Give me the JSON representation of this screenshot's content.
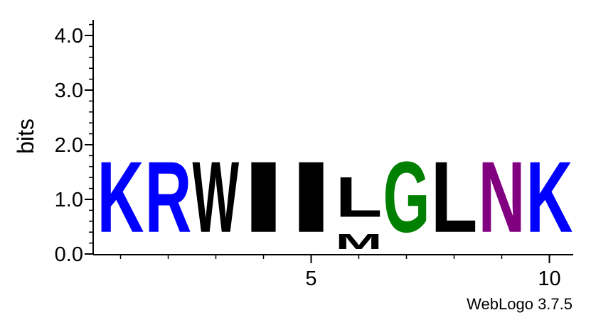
{
  "chart_data": {
    "type": "sequence-logo",
    "ylabel": "bits",
    "ylim": [
      0,
      4.32
    ],
    "y_ticks": [
      {
        "value": 0,
        "label": "0.0"
      },
      {
        "value": 1,
        "label": "1.0"
      },
      {
        "value": 2,
        "label": "2.0"
      },
      {
        "value": 3,
        "label": "3.0"
      },
      {
        "value": 4,
        "label": "4.0"
      }
    ],
    "y_minor_step": 0.2,
    "x_range": [
      1,
      10
    ],
    "x_ticks": [
      {
        "value": 5,
        "label": "5"
      },
      {
        "value": 10,
        "label": "10"
      }
    ],
    "colors": {
      "blue": "#0000ff",
      "black": "#000000",
      "green": "#008000",
      "purple": "#800080"
    },
    "positions": [
      {
        "pos": 1,
        "stack": [
          {
            "letter": "K",
            "bits": 2.07,
            "color": "#0000ff"
          }
        ]
      },
      {
        "pos": 2,
        "stack": [
          {
            "letter": "R",
            "bits": 2.07,
            "color": "#0000ff"
          }
        ]
      },
      {
        "pos": 3,
        "stack": [
          {
            "letter": "W",
            "bits": 2.07,
            "color": "#000000"
          }
        ]
      },
      {
        "pos": 4,
        "stack": [
          {
            "letter": "I",
            "bits": 2.07,
            "color": "#000000"
          }
        ]
      },
      {
        "pos": 5,
        "stack": [
          {
            "letter": "I",
            "bits": 2.07,
            "color": "#000000"
          }
        ]
      },
      {
        "pos": 6,
        "stack": [
          {
            "letter": "M",
            "bits": 0.45,
            "color": "#000000"
          },
          {
            "letter": "L",
            "bits": 1.17,
            "color": "#000000"
          }
        ]
      },
      {
        "pos": 7,
        "stack": [
          {
            "letter": "G",
            "bits": 2.07,
            "color": "#008000"
          }
        ]
      },
      {
        "pos": 8,
        "stack": [
          {
            "letter": "L",
            "bits": 2.07,
            "color": "#000000"
          }
        ]
      },
      {
        "pos": 9,
        "stack": [
          {
            "letter": "N",
            "bits": 2.07,
            "color": "#800080"
          }
        ]
      },
      {
        "pos": 10,
        "stack": [
          {
            "letter": "K",
            "bits": 2.07,
            "color": "#0000ff"
          }
        ]
      }
    ]
  },
  "credit": "WebLogo 3.7.5"
}
